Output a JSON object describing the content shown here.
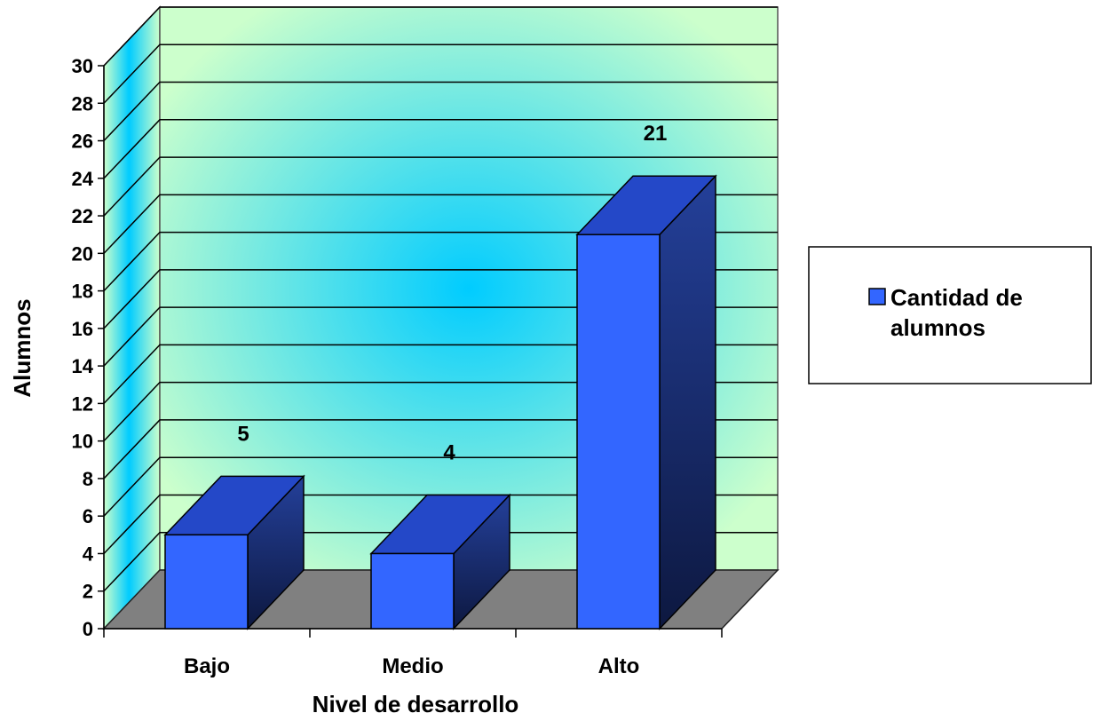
{
  "chart_data": {
    "type": "bar",
    "categories": [
      "Bajo",
      "Medio",
      "Alto"
    ],
    "series": [
      {
        "name": "Cantidad de alumnos",
        "values": [
          5,
          4,
          21
        ]
      }
    ],
    "data_labels": [
      "5",
      "4",
      "21"
    ],
    "xlabel": "Nivel de desarrollo",
    "ylabel": "Alumnos",
    "ylim": [
      0,
      30
    ],
    "ytick_step": 2,
    "grid": true,
    "legend": {
      "placement": "right",
      "lines": [
        "Cantidad de",
        "alumnos"
      ]
    },
    "colors": {
      "bar_front": "#3366ff",
      "bar_side": "#1a2f80",
      "bar_top": "#2448c8",
      "wall_edge": "#ccffcc",
      "wall_center": "#00ccff",
      "floor": "#808080"
    }
  }
}
